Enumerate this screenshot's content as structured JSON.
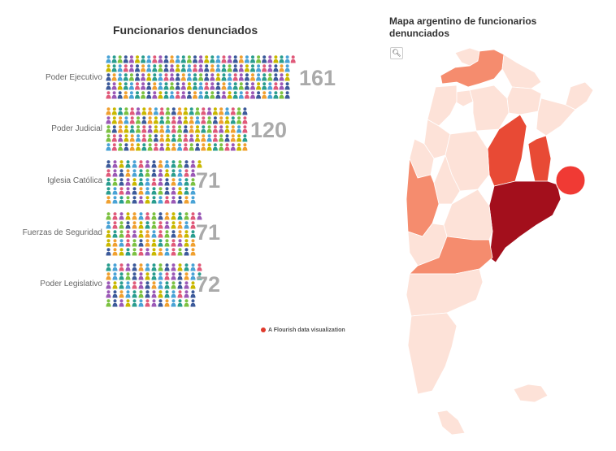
{
  "left_chart": {
    "title": "Funcionarios denunciados"
  },
  "map": {
    "title": "Mapa argentino de funcionarios denunciados",
    "zoom_icon": "search-icon"
  },
  "credit": "A Flourish data visualization",
  "colors": {
    "dot": "#e8312a",
    "icon_palette": [
      "#4aa3d6",
      "#7cc142",
      "#9b59b6",
      "#f0a030",
      "#2a9d8f",
      "#e05a7a",
      "#3c5a9a",
      "#c9b800"
    ],
    "choropleth": [
      "#fde2d8",
      "#f58c6e",
      "#e84a35",
      "#a30f1c"
    ]
  },
  "chart_data": {
    "type": "pictogram",
    "title": "Funcionarios denunciados",
    "categories": [
      "Poder Ejecutivo",
      "Poder Judicial",
      "Iglesia Católica",
      "Fuerzas de Seguridad",
      "Poder Legislativo"
    ],
    "values": [
      161,
      120,
      71,
      71,
      72
    ],
    "labels": {
      "rows": [
        {
          "name": "Poder Ejecutivo",
          "value": "161"
        },
        {
          "name": "Poder Judicial",
          "value": "120"
        },
        {
          "name": "Iglesia Católica",
          "value": "71"
        },
        {
          "name": "Fuerzas de Seguridad",
          "value": "71"
        },
        {
          "name": "Poder Legislativo",
          "value": "72"
        }
      ]
    }
  }
}
